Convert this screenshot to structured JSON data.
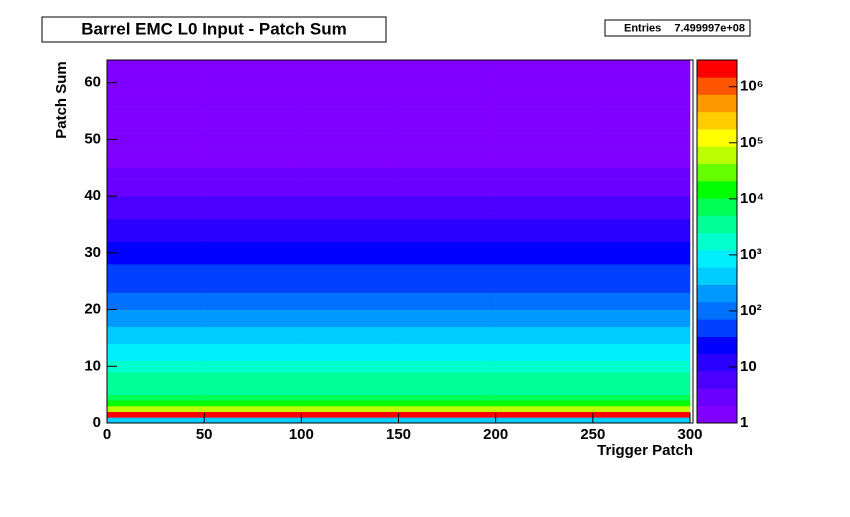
{
  "chart_data": {
    "type": "heatmap",
    "title": "Barrel EMC L0 Input - Patch Sum",
    "stats": {
      "name": "Entries",
      "value": {
        "value": 749999700,
        "label": "7.499997e+08"
      }
    },
    "x_label": "Trigger Patch",
    "y_label": "Patch Sum",
    "xbins": [
      0,
      50,
      100,
      150,
      200,
      250,
      300
    ],
    "ybins": [
      0,
      1,
      2,
      3,
      4,
      5,
      6,
      7,
      8,
      9,
      10,
      11,
      12,
      13,
      14,
      15,
      16,
      17,
      18,
      19,
      20,
      21,
      22,
      23,
      24,
      25,
      26,
      27,
      28,
      29,
      30,
      31,
      32,
      33,
      34,
      35,
      36,
      37,
      38,
      39,
      40,
      41,
      42,
      43,
      44,
      45,
      46,
      47,
      48,
      49,
      50,
      51,
      52,
      53,
      54,
      55,
      56,
      57,
      58,
      59,
      60,
      61,
      62,
      63,
      64
    ],
    "z": [
      [
        300,
        300,
        300,
        300,
        300,
        300
      ],
      [
        1500000,
        1500000,
        1500000,
        1500000,
        1500000,
        1500000
      ],
      [
        80000,
        80000,
        80000,
        80000,
        80000,
        80000
      ],
      [
        15000,
        15000,
        15000,
        15000,
        15000,
        15000
      ],
      [
        8000,
        8000,
        8000,
        8000,
        8000,
        8000
      ],
      [
        5000,
        5000,
        5000,
        5000,
        5000,
        5000
      ],
      [
        4000,
        4000,
        4000,
        4000,
        4000,
        4000
      ],
      [
        3000,
        3000,
        3000,
        3000,
        3000,
        3000
      ],
      [
        2500,
        2500,
        2500,
        2500,
        2500,
        2500
      ],
      [
        2000,
        2000,
        2000,
        2000,
        2000,
        2000
      ],
      [
        1500,
        1500,
        1500,
        1500,
        1500,
        1500
      ],
      [
        1200,
        1200,
        1200,
        1200,
        1200,
        1200
      ],
      [
        900,
        900,
        900,
        900,
        900,
        900
      ],
      [
        700,
        700,
        700,
        700,
        700,
        700
      ],
      [
        500,
        500,
        500,
        500,
        500,
        500
      ],
      [
        400,
        400,
        400,
        400,
        400,
        400
      ],
      [
        300,
        300,
        300,
        300,
        300,
        300
      ],
      [
        250,
        250,
        250,
        250,
        250,
        250
      ],
      [
        200,
        200,
        200,
        200,
        200,
        200
      ],
      [
        150,
        150,
        150,
        150,
        150,
        150
      ],
      [
        120,
        120,
        120,
        120,
        120,
        120
      ],
      [
        100,
        100,
        100,
        100,
        100,
        100
      ],
      [
        80,
        80,
        80,
        80,
        80,
        80
      ],
      [
        70,
        70,
        70,
        70,
        70,
        70
      ],
      [
        60,
        60,
        60,
        60,
        60,
        60
      ],
      [
        50,
        50,
        50,
        50,
        50,
        50
      ],
      [
        40,
        40,
        40,
        40,
        40,
        40
      ],
      [
        35,
        35,
        35,
        35,
        35,
        35
      ],
      [
        30,
        30,
        30,
        30,
        30,
        30
      ],
      [
        25,
        25,
        25,
        25,
        25,
        25
      ],
      [
        20,
        20,
        20,
        20,
        20,
        20
      ],
      [
        18,
        18,
        18,
        18,
        18,
        18
      ],
      [
        15,
        15,
        15,
        15,
        15,
        15
      ],
      [
        12,
        12,
        12,
        12,
        12,
        12
      ],
      [
        10,
        10,
        10,
        10,
        10,
        10
      ],
      [
        9,
        9,
        9,
        9,
        9,
        9
      ],
      [
        8,
        8,
        8,
        8,
        8,
        8
      ],
      [
        7,
        7,
        7,
        7,
        7,
        7
      ],
      [
        6,
        6,
        6,
        6,
        6,
        6
      ],
      [
        5,
        5,
        5,
        5,
        5,
        5
      ],
      [
        4,
        4,
        4,
        4,
        4,
        4
      ],
      [
        4,
        4,
        4,
        4,
        4,
        4
      ],
      [
        3,
        3,
        3,
        3,
        3,
        3
      ],
      [
        3,
        3,
        3,
        3,
        3,
        3
      ],
      [
        3,
        3,
        3,
        3,
        3,
        3
      ],
      [
        2,
        2,
        2,
        2,
        2,
        2
      ],
      [
        2,
        2,
        2,
        2,
        2,
        2
      ],
      [
        2,
        2,
        2,
        2,
        2,
        2
      ],
      [
        2,
        2,
        2,
        2,
        2,
        2
      ],
      [
        2,
        2,
        2,
        2,
        2,
        2
      ],
      [
        1,
        1,
        1,
        1,
        1,
        1
      ],
      [
        1,
        1,
        1,
        1,
        1,
        1
      ],
      [
        1,
        1,
        1,
        1,
        1,
        1
      ],
      [
        1,
        1,
        1,
        1,
        1,
        1
      ],
      [
        1,
        1,
        1,
        1,
        1,
        1
      ],
      [
        1,
        1,
        1,
        1,
        1,
        1
      ],
      [
        1,
        1,
        1,
        1,
        1,
        1
      ],
      [
        1,
        1,
        1,
        1,
        1,
        1
      ],
      [
        1,
        1,
        1,
        1,
        1,
        1
      ],
      [
        1,
        1,
        1,
        1,
        1,
        1
      ],
      [
        1,
        1,
        1,
        1,
        1,
        1
      ],
      [
        1,
        1,
        1,
        1,
        1,
        1
      ],
      [
        1,
        1,
        1,
        1,
        1,
        1
      ],
      [
        1,
        1,
        1,
        1,
        1,
        1
      ]
    ],
    "xlim": [
      0,
      300
    ],
    "ylim": [
      0,
      64
    ],
    "xticks": [
      0,
      50,
      100,
      150,
      200,
      250,
      300
    ],
    "yticks": [
      0,
      10,
      20,
      30,
      40,
      50,
      60
    ],
    "zlim": [
      1,
      3000000
    ],
    "zscale": "log",
    "zticks": [
      1,
      10,
      {
        "value": 100,
        "label": "10²"
      },
      {
        "value": 1000,
        "label": "10³"
      },
      {
        "value": 10000,
        "label": "10⁴"
      },
      {
        "value": 100000,
        "label": "10⁵"
      },
      {
        "value": 1000000,
        "label": "10⁶"
      }
    ],
    "palette": [
      "#7f00ff",
      "#6a00ff",
      "#4b00ff",
      "#2a00ff",
      "#0000ff",
      "#0040ff",
      "#0070ff",
      "#0099ff",
      "#00ccff",
      "#00eeff",
      "#00ffcc",
      "#00ff99",
      "#00ff55",
      "#00ff00",
      "#66ff00",
      "#bbff00",
      "#ffff00",
      "#ffcc00",
      "#ff9900",
      "#ff5500",
      "#ff0000"
    ]
  }
}
